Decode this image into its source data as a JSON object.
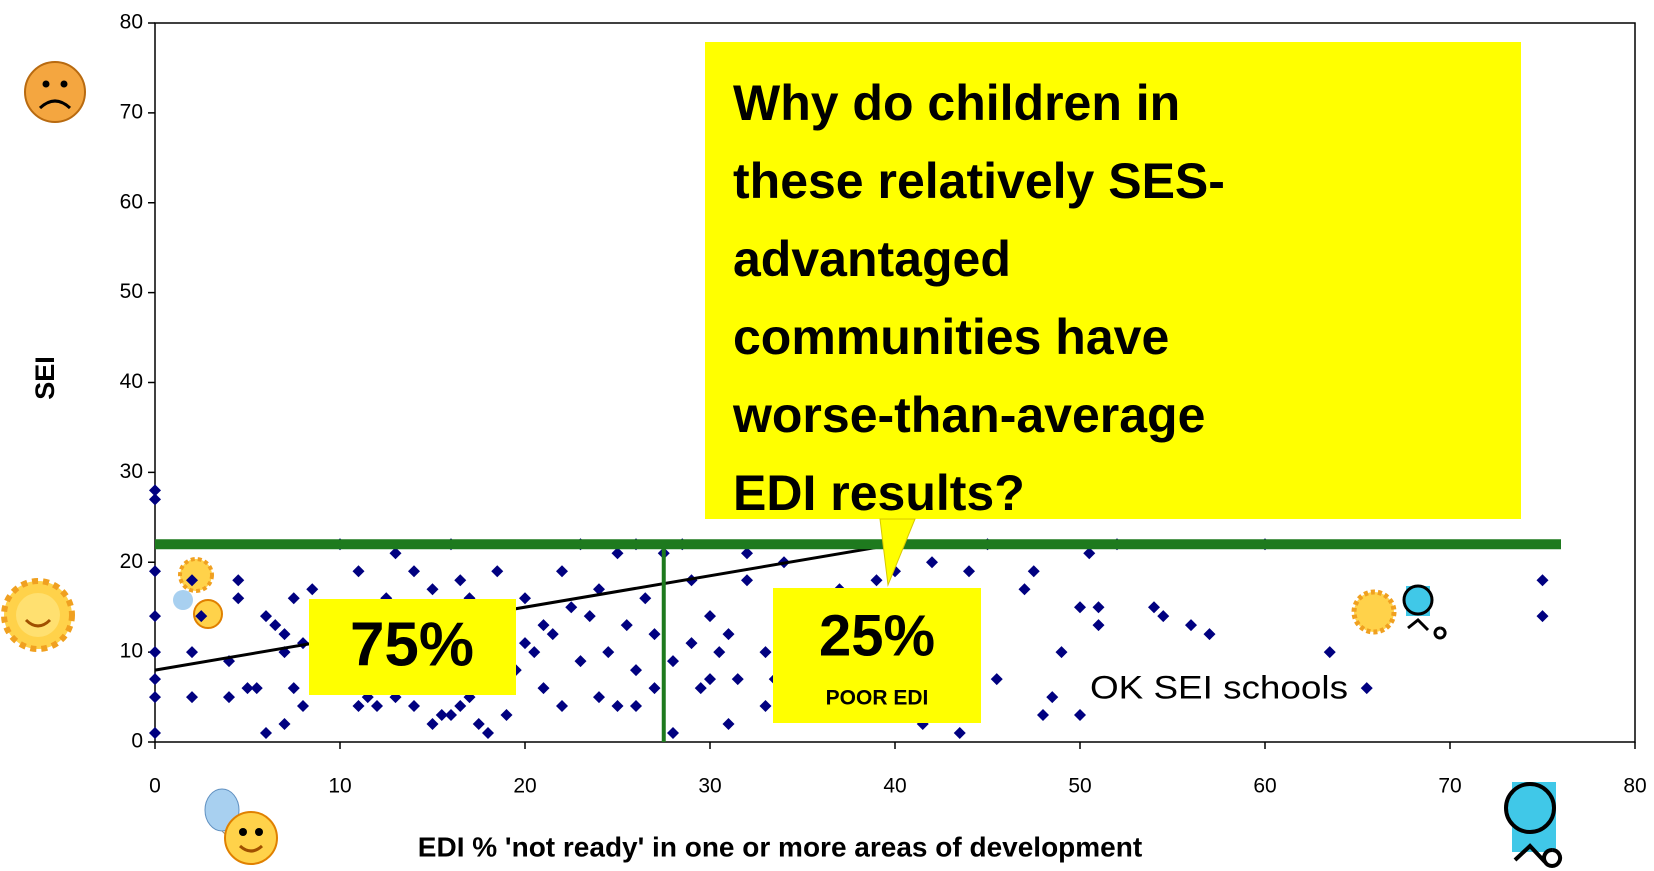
{
  "chart_data": {
    "type": "scatter",
    "x_label": "EDI % 'not ready' in one or more areas of development",
    "y_label": "SEI",
    "color": "#000080",
    "x": [
      0,
      0,
      0,
      0,
      0,
      0,
      0,
      0,
      2,
      2,
      2,
      2.5,
      4,
      4,
      4.5,
      4.5,
      5,
      5.5,
      6,
      6,
      6.5,
      7,
      7,
      7,
      7.5,
      7.5,
      8,
      8,
      8.5,
      9,
      9,
      9.5,
      10,
      10,
      10.5,
      11,
      11,
      11,
      11.5,
      12,
      12,
      12.5,
      13,
      13,
      13,
      14,
      14,
      14,
      14.5,
      15,
      15,
      15,
      15.5,
      16,
      16,
      16,
      16.5,
      16.5,
      17,
      17,
      17.5,
      18,
      18,
      18.5,
      19,
      19,
      19.5,
      20,
      20,
      20.5,
      21,
      21,
      21.5,
      22,
      22,
      22.5,
      23,
      23,
      23.5,
      24,
      24,
      24.5,
      25,
      25,
      25.5,
      26,
      26,
      26,
      26.5,
      27,
      27,
      27.5,
      28,
      28,
      28.5,
      29,
      29,
      29.5,
      30,
      30,
      30.5,
      31,
      31,
      31.5,
      32,
      32,
      33,
      33,
      33.5,
      34,
      34,
      35,
      35,
      35,
      36,
      36,
      37,
      38,
      38,
      39,
      40,
      40,
      40.5,
      41,
      41.5,
      42,
      42,
      43,
      43.5,
      44,
      44,
      45,
      45.5,
      47,
      47.5,
      48,
      48.5,
      49,
      50,
      50,
      50.5,
      51,
      51,
      52,
      54,
      54.5,
      56,
      57,
      60,
      63.5,
      65.5,
      75,
      75
    ],
    "values": [
      28,
      27,
      19,
      14,
      10,
      7,
      5,
      1,
      18,
      10,
      5,
      14,
      9,
      5,
      18,
      16,
      6,
      6,
      14,
      1,
      13,
      12,
      2,
      10,
      16,
      6,
      4,
      11,
      17,
      8,
      14,
      12,
      22,
      8,
      14,
      19,
      7,
      4,
      5,
      10,
      4,
      16,
      21,
      12,
      5,
      19,
      14,
      4,
      6,
      17,
      11,
      2,
      3,
      22,
      9,
      3,
      18,
      4,
      16,
      5,
      2,
      12,
      1,
      19,
      3,
      14,
      8,
      11,
      16,
      10,
      13,
      6,
      12,
      19,
      4,
      15,
      22,
      9,
      14,
      17,
      5,
      10,
      21,
      4,
      13,
      22,
      8,
      4,
      16,
      12,
      6,
      21,
      1,
      9,
      22,
      18,
      11,
      6,
      14,
      7,
      10,
      12,
      2,
      7,
      21,
      18,
      10,
      4,
      7,
      20,
      14,
      16,
      9,
      5,
      14,
      3,
      17,
      11,
      7,
      18,
      19,
      12,
      14,
      9,
      2,
      20,
      13,
      10,
      1,
      12,
      19,
      22,
      7,
      17,
      19,
      3,
      5,
      10,
      15,
      3,
      21,
      13,
      15,
      22,
      15,
      14,
      13,
      12,
      22,
      10,
      6,
      18,
      14
    ],
    "trend": {
      "x": [
        0,
        40
      ],
      "y": [
        8,
        22
      ],
      "color": "#000000"
    },
    "hline": {
      "y": 22,
      "x": [
        0,
        76
      ],
      "color": "#1e7a1e"
    },
    "vline": {
      "x": 27.5,
      "y": [
        0,
        22
      ],
      "color": "#1e7a1e"
    },
    "xlim": [
      0,
      80
    ],
    "ylim": [
      0,
      80
    ],
    "xticks": [
      0,
      10,
      20,
      30,
      40,
      50,
      60,
      70,
      80
    ],
    "yticks": [
      0,
      10,
      20,
      30,
      40,
      50,
      60,
      70,
      80
    ],
    "callout": [
      "Why do children in",
      "these relatively SES-",
      "advantaged",
      "communities have",
      "worse-than-average",
      "EDI results?"
    ],
    "label_left": "75%",
    "label_right": "25%",
    "label_right_sub": "POOR EDI",
    "note": "OK SEI schools"
  }
}
